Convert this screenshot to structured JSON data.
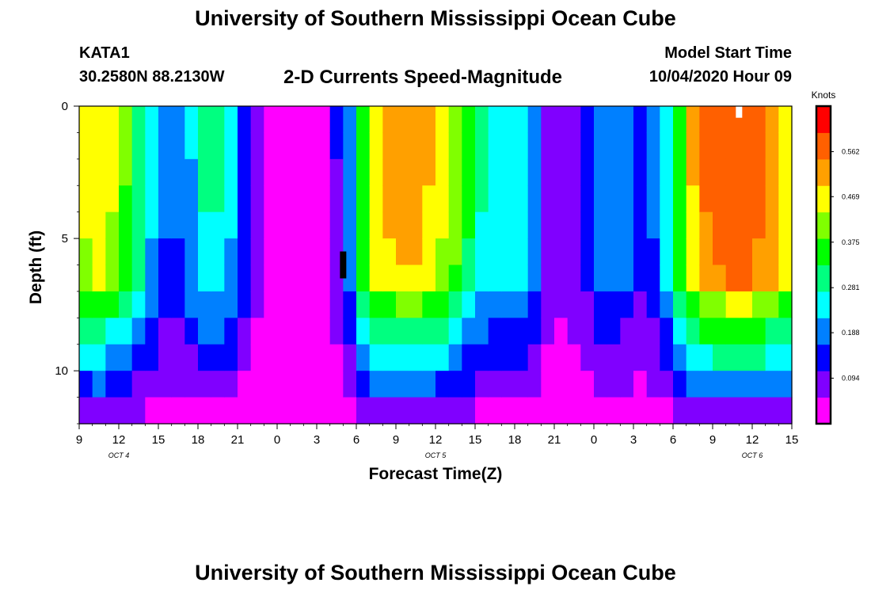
{
  "page": {
    "title": "University of Southern Mississippi Ocean Cube",
    "footer_title": "University of Southern Mississippi Ocean Cube",
    "station": "KATA1",
    "coordinates": "30.2580N 88.2130W",
    "subtitle": "2-D Currents Speed-Magnitude",
    "model_start_label": "Model Start Time",
    "model_start_value": "10/04/2020 Hour 09"
  },
  "chart_data": {
    "type": "heatmap",
    "title": "2-D Currents Speed-Magnitude",
    "xlabel": "Forecast Time(Z)",
    "ylabel": "Depth (ft)",
    "x_tick_labels": [
      "9",
      "12",
      "15",
      "18",
      "21",
      "0",
      "3",
      "6",
      "9",
      "12",
      "15",
      "18",
      "21",
      "0",
      "3",
      "6",
      "9",
      "12",
      "15"
    ],
    "x_day_labels": [
      "OCT 4",
      "OCT 5",
      "OCT 6"
    ],
    "x_range_hours": [
      0,
      54
    ],
    "y_tick_labels": [
      "0",
      "5",
      "10"
    ],
    "ylim": [
      0,
      12
    ],
    "y_inverted": true,
    "colorbar_label": "Knots",
    "colorbar_ticks": [
      "0.562",
      "0.469",
      "0.375",
      "0.281",
      "0.188",
      "0.094"
    ],
    "colorbar_range": [
      0,
      0.656
    ],
    "colors": [
      "#ff00ff",
      "#8000ff",
      "#0000ff",
      "#0080ff",
      "#00ffff",
      "#00ff80",
      "#00ff00",
      "#80ff00",
      "#ffff00",
      "#ffa000",
      "#ff6000",
      "#ff0000"
    ],
    "time_hours": [
      0,
      1,
      2,
      3,
      4,
      5,
      6,
      7,
      8,
      9,
      10,
      11,
      12,
      13,
      14,
      15,
      16,
      17,
      18,
      19,
      20,
      21,
      22,
      23,
      24,
      25,
      26,
      27,
      28,
      29,
      30,
      31,
      32,
      33,
      34,
      35,
      36,
      37,
      38,
      39,
      40,
      41,
      42,
      43,
      44,
      45,
      46,
      47,
      48,
      49,
      50,
      51,
      52,
      53
    ],
    "surface_speed_knots": [
      0.46,
      0.48,
      0.45,
      0.39,
      0.31,
      0.23,
      0.17,
      0.17,
      0.22,
      0.28,
      0.28,
      0.23,
      0.15,
      0.08,
      0.05,
      0.03,
      0.01,
      0.01,
      0.03,
      0.11,
      0.2,
      0.37,
      0.49,
      0.51,
      0.52,
      0.52,
      0.5,
      0.46,
      0.41,
      0.34,
      0.28,
      0.26,
      0.27,
      0.25,
      0.19,
      0.1,
      0.08,
      0.1,
      0.14,
      0.19,
      0.2,
      0.18,
      0.14,
      0.17,
      0.26,
      0.38,
      0.5,
      0.56,
      0.58,
      0.6,
      0.6,
      0.57,
      0.53,
      0.49
    ],
    "depth_profile_ft": [
      0.5,
      1.5,
      2.5,
      3.5,
      4.5,
      5.5,
      6.5,
      7.5,
      8.5,
      9.5,
      10.5,
      11.5
    ],
    "depth_profile_factor": [
      1.0,
      1.0,
      0.99,
      0.98,
      0.97,
      0.95,
      0.93,
      0.75,
      0.6,
      0.48,
      0.35,
      0.18
    ],
    "markers": [
      {
        "x_hour": 20,
        "depth_ft": 6,
        "color": "#000000"
      },
      {
        "x_hour": 50,
        "depth_ft": 0.2,
        "color": "#ffffff"
      }
    ]
  }
}
